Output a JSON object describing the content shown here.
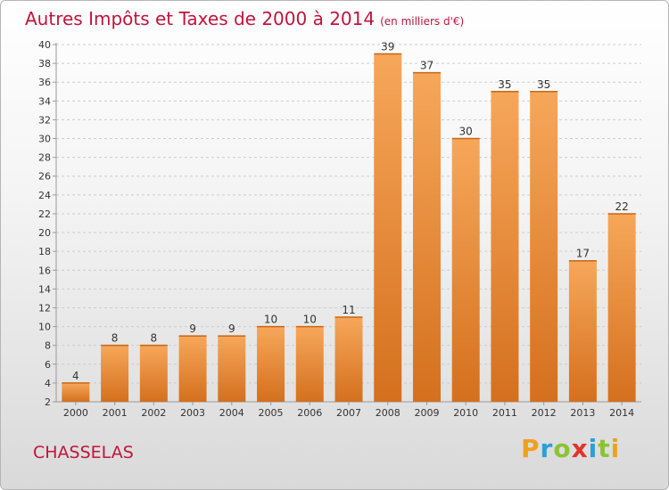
{
  "title": "Autres Impôts et Taxes de 2000 à 2014",
  "unit": "(en milliers d'€)",
  "commune": "CHASSELAS",
  "logo": "Proxiti",
  "colors": {
    "title": "#c0143c",
    "bar_light": "#f7a75a",
    "bar_dark": "#d4701e",
    "axis": "#999999",
    "grid": "#cccccc"
  },
  "chart_data": {
    "type": "bar",
    "categories": [
      "2000",
      "2001",
      "2002",
      "2003",
      "2004",
      "2005",
      "2006",
      "2007",
      "2008",
      "2009",
      "2010",
      "2011",
      "2012",
      "2013",
      "2014"
    ],
    "values": [
      4,
      8,
      8,
      9,
      9,
      10,
      10,
      11,
      39,
      37,
      30,
      35,
      35,
      17,
      22
    ],
    "data_labels": [
      "4",
      "8",
      "8",
      "9",
      "9",
      "10",
      "10",
      "11",
      "39",
      "37",
      "30",
      "35",
      "35",
      "17",
      "22"
    ],
    "ylim": [
      2,
      40
    ],
    "yticks": [
      "2",
      "4",
      "6",
      "8",
      "10",
      "12",
      "14",
      "16",
      "18",
      "20",
      "22",
      "24",
      "26",
      "28",
      "30",
      "32",
      "34",
      "36",
      "38",
      "40"
    ],
    "grid": true,
    "legend": "none",
    "xlabel": "",
    "ylabel": ""
  }
}
